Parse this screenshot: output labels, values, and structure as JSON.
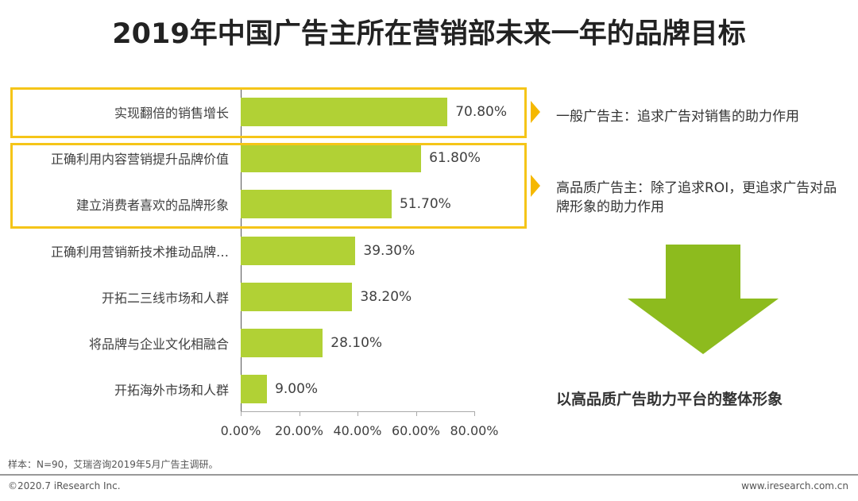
{
  "chart_data": {
    "type": "bar",
    "orientation": "horizontal",
    "title": "2019年中国广告主所在营销部未来一年的品牌目标",
    "categories": [
      "实现翻倍的销售增长",
      "正确利用内容营销提升品牌价值",
      "建立消费者喜欢的品牌形象",
      "正确利用营销新技术推动品牌…",
      "开拓二三线市场和人群",
      "将品牌与企业文化相融合",
      "开拓海外市场和人群"
    ],
    "values": [
      70.8,
      61.8,
      51.7,
      39.3,
      38.2,
      28.1,
      9.0
    ],
    "value_labels": [
      "70.80%",
      "61.80%",
      "51.70%",
      "39.30%",
      "38.20%",
      "28.10%",
      "9.00%"
    ],
    "xlim": [
      0,
      80
    ],
    "xticks": [
      "0.00%",
      "20.00%",
      "40.00%",
      "60.00%",
      "80.00%"
    ],
    "grid": false,
    "bar_color": "#b1d135",
    "highlight_color": "#f5c518"
  },
  "annotations": {
    "note1": "一般广告主：追求广告对销售的助力作用",
    "note2": "高品质广告主：除了追求ROI，更追求广告对品牌形象的助力作用",
    "conclusion": "以高品质广告助力平台的整体形象",
    "arrow_color": "#8dbb1e"
  },
  "footer": {
    "source": "样本：N=90，艾瑞咨询2019年5月广告主调研。",
    "copyright": "©2020.7 iResearch Inc.",
    "website": "www.iresearch.com.cn"
  }
}
